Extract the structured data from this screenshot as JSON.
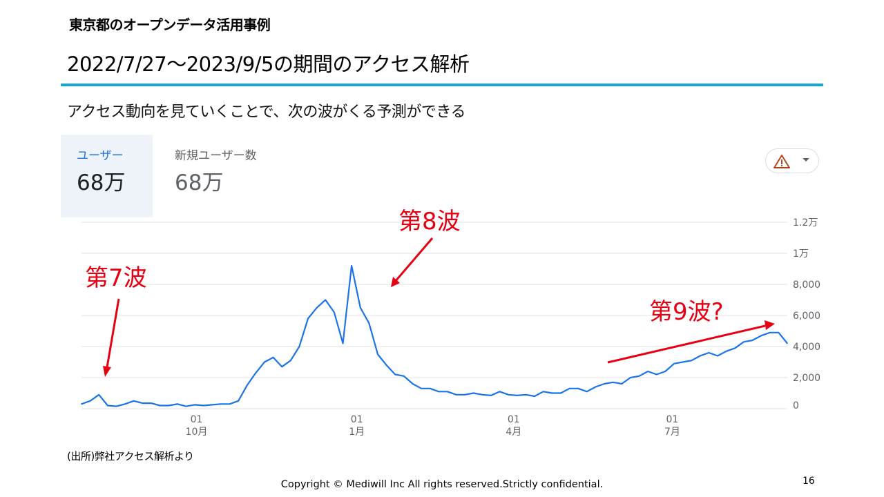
{
  "header": {
    "label": "東京都のオープンデータ活用事例"
  },
  "slide": {
    "title": "2022/7/27～2023/9/5の期間のアクセス解析",
    "subtitle": "アクセス動向を見ていくことで、次の波がくる予測ができる"
  },
  "metrics": {
    "users": {
      "label": "ユーザー",
      "value": "68万"
    },
    "new_users": {
      "label": "新規ユーザー数",
      "value": "68万"
    }
  },
  "icons": {
    "warning": "warning-icon",
    "dropdown": "caret-down-icon"
  },
  "colors": {
    "line": "#1a73e8",
    "annotation": "#e60012",
    "title_rule": "#1aa5d8"
  },
  "annotations": [
    {
      "text": "第7波"
    },
    {
      "text": "第8波"
    },
    {
      "text": "第9波?"
    }
  ],
  "chart_data": {
    "type": "line",
    "x_ticks": [
      {
        "day": "01",
        "month": "10月"
      },
      {
        "day": "01",
        "month": "1月"
      },
      {
        "day": "01",
        "month": "4月"
      },
      {
        "day": "01",
        "month": "7月"
      }
    ],
    "y_ticks": [
      "1.2万",
      "1万",
      "8,000",
      "6,000",
      "4,000",
      "2,000",
      "0"
    ],
    "ylim": [
      0,
      12000
    ],
    "x_range": [
      "2022-07-27",
      "2023-09-05"
    ],
    "y_axis_position": "right",
    "grid": true,
    "series": [
      {
        "x": [
          "2022-07-27",
          "2022-08-01",
          "2022-08-06",
          "2022-08-11",
          "2022-08-16",
          "2022-08-21",
          "2022-08-26",
          "2022-08-31",
          "2022-09-05",
          "2022-09-10",
          "2022-09-15",
          "2022-09-20",
          "2022-09-25",
          "2022-09-30",
          "2022-10-05",
          "2022-10-10",
          "2022-10-15",
          "2022-10-20",
          "2022-10-25",
          "2022-10-30",
          "2022-11-04",
          "2022-11-09",
          "2022-11-14",
          "2022-11-19",
          "2022-11-24",
          "2022-11-29",
          "2022-12-04",
          "2022-12-09",
          "2022-12-14",
          "2022-12-19",
          "2022-12-24",
          "2022-12-29",
          "2023-01-03",
          "2023-01-08",
          "2023-01-13",
          "2023-01-18",
          "2023-01-23",
          "2023-01-28",
          "2023-02-02",
          "2023-02-07",
          "2023-02-12",
          "2023-02-17",
          "2023-02-22",
          "2023-02-27",
          "2023-03-04",
          "2023-03-09",
          "2023-03-14",
          "2023-03-19",
          "2023-03-24",
          "2023-03-29",
          "2023-04-03",
          "2023-04-08",
          "2023-04-13",
          "2023-04-18",
          "2023-04-23",
          "2023-04-28",
          "2023-05-03",
          "2023-05-08",
          "2023-05-13",
          "2023-05-18",
          "2023-05-23",
          "2023-05-28",
          "2023-06-02",
          "2023-06-07",
          "2023-06-12",
          "2023-06-17",
          "2023-06-22",
          "2023-06-27",
          "2023-07-02",
          "2023-07-07",
          "2023-07-12",
          "2023-07-17",
          "2023-07-22",
          "2023-07-27",
          "2023-08-01",
          "2023-08-06",
          "2023-08-11",
          "2023-08-16",
          "2023-08-21",
          "2023-08-26",
          "2023-08-31",
          "2023-09-05"
        ],
        "values": [
          300,
          500,
          900,
          200,
          150,
          300,
          500,
          350,
          350,
          200,
          200,
          300,
          150,
          250,
          200,
          250,
          300,
          300,
          500,
          1500,
          2300,
          3000,
          3300,
          2700,
          3100,
          4000,
          5800,
          6500,
          7000,
          6200,
          4200,
          9200,
          6500,
          5500,
          3500,
          2800,
          2200,
          2100,
          1600,
          1300,
          1300,
          1100,
          1100,
          900,
          900,
          1000,
          900,
          850,
          1100,
          900,
          850,
          900,
          800,
          1100,
          1000,
          1000,
          1300,
          1300,
          1100,
          1400,
          1600,
          1700,
          1600,
          2000,
          2100,
          2400,
          2200,
          2400,
          2900,
          3000,
          3100,
          3400,
          3600,
          3400,
          3700,
          3900,
          4300,
          4400,
          4700,
          4900,
          4900,
          4200
        ]
      }
    ]
  },
  "footer": {
    "source": "(出所)弊社アクセス解析より",
    "copyright": "Copyright © Mediwill Inc All rights reserved.Strictly confidential.",
    "page": "16"
  }
}
